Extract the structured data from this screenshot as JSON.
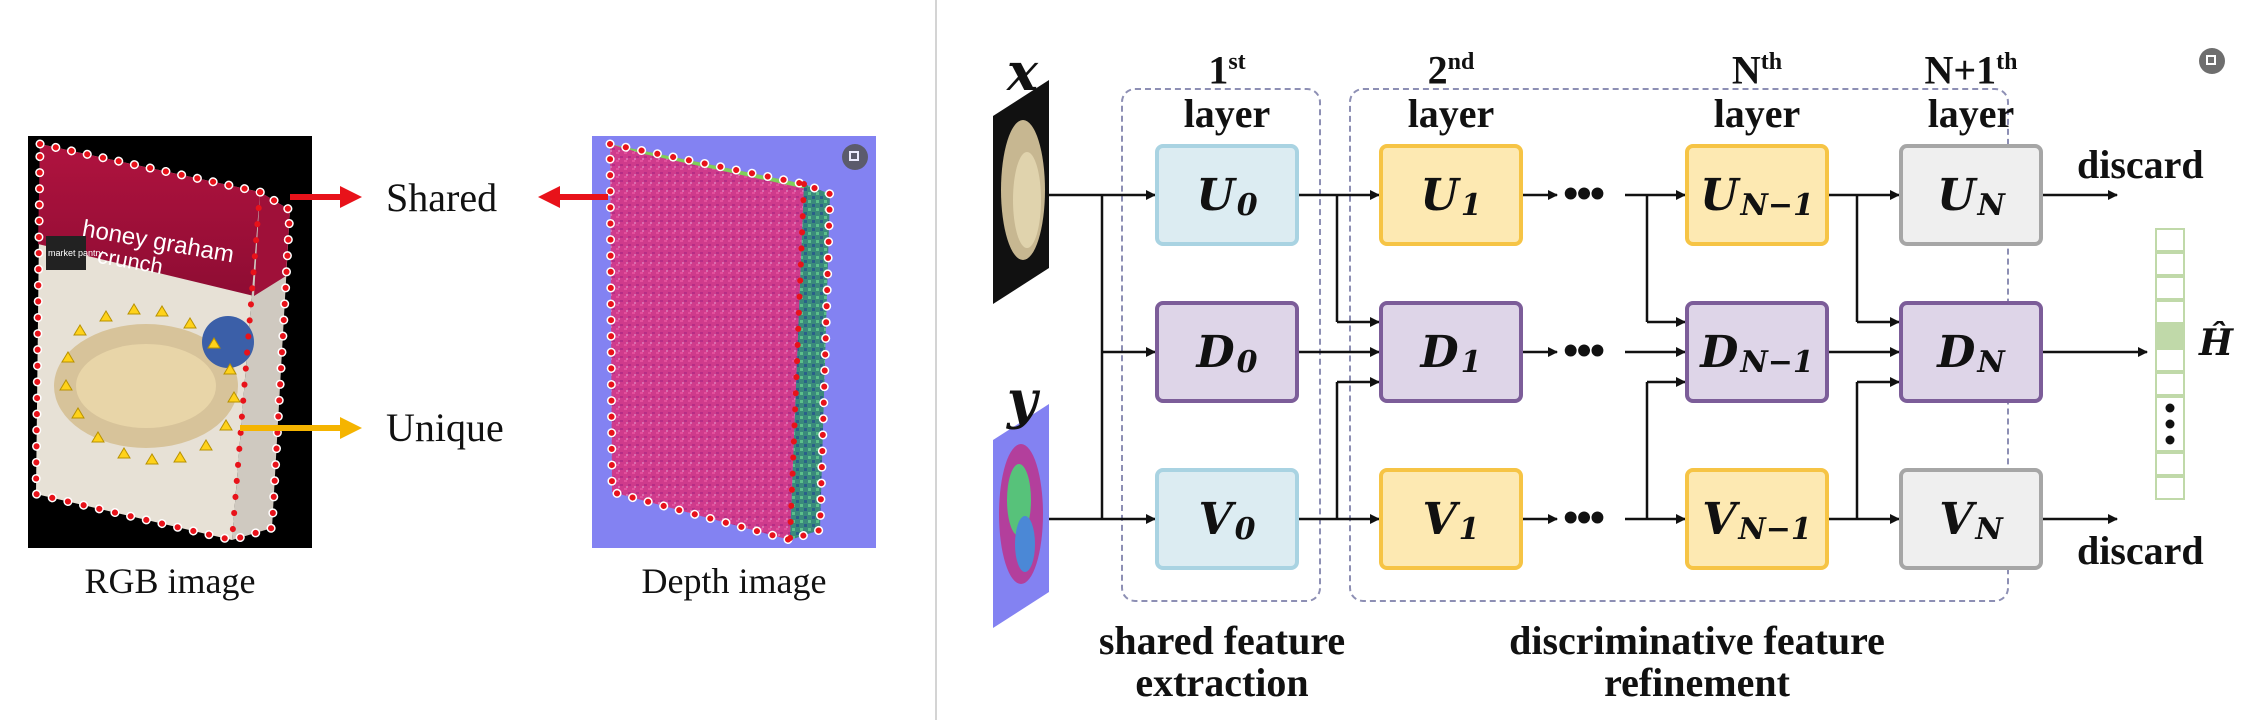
{
  "left_panel": {
    "rgb_caption": "RGB image",
    "depth_caption": "Depth image",
    "shared_label": "Shared",
    "unique_label": "Unique",
    "box_text_line1": "honey graham",
    "box_text_line2": "crunch",
    "box_brand": "market pantry",
    "colors": {
      "shared_arrow": "#e8121a",
      "unique_arrow": "#f5b400",
      "dot_outline": "#e8121a",
      "triangle": "#ffd21a"
    }
  },
  "right_panel": {
    "var_x": "x",
    "var_y": "y",
    "layers": [
      {
        "label_main": "1",
        "label_sup": "st",
        "label_word": "layer"
      },
      {
        "label_main": "2",
        "label_sup": "nd",
        "label_word": "layer"
      },
      {
        "label_main": "N",
        "label_sup": "th",
        "label_word": "layer"
      },
      {
        "label_main": "N+1",
        "label_sup": "th",
        "label_word": "layer"
      }
    ],
    "nodes": {
      "u0": {
        "base": "U",
        "sub": "0"
      },
      "d0": {
        "base": "D",
        "sub": "0"
      },
      "v0": {
        "base": "V",
        "sub": "0"
      },
      "u1": {
        "base": "U",
        "sub": "1"
      },
      "d1": {
        "base": "D",
        "sub": "1"
      },
      "v1": {
        "base": "V",
        "sub": "1"
      },
      "un1": {
        "base": "U",
        "sub": "N−1"
      },
      "dn1": {
        "base": "D",
        "sub": "N−1"
      },
      "vn1": {
        "base": "V",
        "sub": "N−1"
      },
      "un": {
        "base": "U",
        "sub": "N"
      },
      "dn": {
        "base": "D",
        "sub": "N"
      },
      "vn": {
        "base": "V",
        "sub": "N"
      }
    },
    "ellipsis": "•••",
    "discard_top": "discard",
    "discard_bottom": "discard",
    "output_label": "Ĥ",
    "shared_caption_line1": "shared feature",
    "shared_caption_line2": "extraction",
    "disc_caption_line1": "discriminative feature",
    "disc_caption_line2": "refinement"
  }
}
